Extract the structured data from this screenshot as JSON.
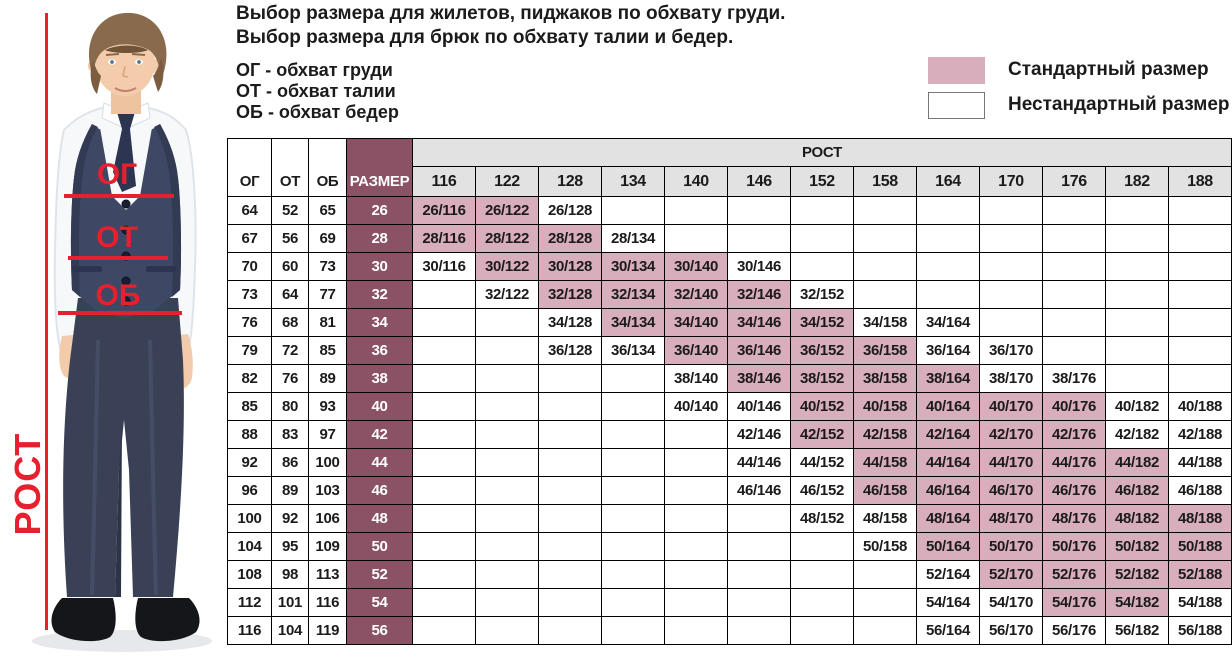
{
  "header": {
    "title_line1": "Выбор размера для жилетов, пиджаков по обхвату груди.",
    "title_line2": "Выбор размера для брюк по обхвату талии и бедер.",
    "definitions": [
      "ОГ - обхват груди",
      "ОТ - обхват талии",
      "ОБ - обхват бедер"
    ]
  },
  "legend": {
    "standard_label": "Стандартный размер",
    "nonstandard_label": "Нестандартный размер",
    "standard_color": "#d9aebc",
    "nonstandard_color": "#ffffff"
  },
  "figure": {
    "og_label": "ОГ",
    "ot_label": "ОТ",
    "ob_label": "ОБ",
    "rost_label": "РОСТ",
    "annotation_color": "#e6202e"
  },
  "chart_data": {
    "type": "table",
    "fixed_columns": [
      "ОГ",
      "ОТ",
      "ОБ",
      "РАЗМЕР"
    ],
    "height_group_label": "РОСТ",
    "heights": [
      "116",
      "122",
      "128",
      "134",
      "140",
      "146",
      "152",
      "158",
      "164",
      "170",
      "176",
      "182",
      "188"
    ],
    "colors": {
      "standard_cell": "#d9aebc",
      "size_column": "#8b5164",
      "header_bg": "#e2e2e2"
    },
    "rows": [
      {
        "og": "64",
        "ot": "52",
        "ob": "65",
        "size": "26",
        "cells": [
          {
            "h": "116",
            "label": "26/116",
            "standard": true
          },
          {
            "h": "122",
            "label": "26/122",
            "standard": true
          },
          {
            "h": "128",
            "label": "26/128",
            "standard": false
          }
        ]
      },
      {
        "og": "67",
        "ot": "56",
        "ob": "69",
        "size": "28",
        "cells": [
          {
            "h": "116",
            "label": "28/116",
            "standard": true
          },
          {
            "h": "122",
            "label": "28/122",
            "standard": true
          },
          {
            "h": "128",
            "label": "28/128",
            "standard": true
          },
          {
            "h": "134",
            "label": "28/134",
            "standard": false
          }
        ]
      },
      {
        "og": "70",
        "ot": "60",
        "ob": "73",
        "size": "30",
        "cells": [
          {
            "h": "116",
            "label": "30/116",
            "standard": false
          },
          {
            "h": "122",
            "label": "30/122",
            "standard": true
          },
          {
            "h": "128",
            "label": "30/128",
            "standard": true
          },
          {
            "h": "134",
            "label": "30/134",
            "standard": true
          },
          {
            "h": "140",
            "label": "30/140",
            "standard": true
          },
          {
            "h": "146",
            "label": "30/146",
            "standard": false
          }
        ]
      },
      {
        "og": "73",
        "ot": "64",
        "ob": "77",
        "size": "32",
        "cells": [
          {
            "h": "122",
            "label": "32/122",
            "standard": false
          },
          {
            "h": "128",
            "label": "32/128",
            "standard": true
          },
          {
            "h": "134",
            "label": "32/134",
            "standard": true
          },
          {
            "h": "140",
            "label": "32/140",
            "standard": true
          },
          {
            "h": "146",
            "label": "32/146",
            "standard": true
          },
          {
            "h": "152",
            "label": "32/152",
            "standard": false
          }
        ]
      },
      {
        "og": "76",
        "ot": "68",
        "ob": "81",
        "size": "34",
        "cells": [
          {
            "h": "128",
            "label": "34/128",
            "standard": false
          },
          {
            "h": "134",
            "label": "34/134",
            "standard": true
          },
          {
            "h": "140",
            "label": "34/140",
            "standard": true
          },
          {
            "h": "146",
            "label": "34/146",
            "standard": true
          },
          {
            "h": "152",
            "label": "34/152",
            "standard": true
          },
          {
            "h": "158",
            "label": "34/158",
            "standard": false
          },
          {
            "h": "164",
            "label": "34/164",
            "standard": false
          }
        ]
      },
      {
        "og": "79",
        "ot": "72",
        "ob": "85",
        "size": "36",
        "cells": [
          {
            "h": "128",
            "label": "36/128",
            "standard": false
          },
          {
            "h": "134",
            "label": "36/134",
            "standard": false
          },
          {
            "h": "140",
            "label": "36/140",
            "standard": true
          },
          {
            "h": "146",
            "label": "36/146",
            "standard": true
          },
          {
            "h": "152",
            "label": "36/152",
            "standard": true
          },
          {
            "h": "158",
            "label": "36/158",
            "standard": true
          },
          {
            "h": "164",
            "label": "36/164",
            "standard": false
          },
          {
            "h": "170",
            "label": "36/170",
            "standard": false
          }
        ]
      },
      {
        "og": "82",
        "ot": "76",
        "ob": "89",
        "size": "38",
        "cells": [
          {
            "h": "140",
            "label": "38/140",
            "standard": false
          },
          {
            "h": "146",
            "label": "38/146",
            "standard": true
          },
          {
            "h": "152",
            "label": "38/152",
            "standard": true
          },
          {
            "h": "158",
            "label": "38/158",
            "standard": true
          },
          {
            "h": "164",
            "label": "38/164",
            "standard": true
          },
          {
            "h": "170",
            "label": "38/170",
            "standard": false
          },
          {
            "h": "176",
            "label": "38/176",
            "standard": false
          }
        ]
      },
      {
        "og": "85",
        "ot": "80",
        "ob": "93",
        "size": "40",
        "cells": [
          {
            "h": "140",
            "label": "40/140",
            "standard": false
          },
          {
            "h": "146",
            "label": "40/146",
            "standard": false
          },
          {
            "h": "152",
            "label": "40/152",
            "standard": true
          },
          {
            "h": "158",
            "label": "40/158",
            "standard": true
          },
          {
            "h": "164",
            "label": "40/164",
            "standard": true
          },
          {
            "h": "170",
            "label": "40/170",
            "standard": true
          },
          {
            "h": "176",
            "label": "40/176",
            "standard": true
          },
          {
            "h": "182",
            "label": "40/182",
            "standard": false
          },
          {
            "h": "188",
            "label": "40/188",
            "standard": false
          }
        ]
      },
      {
        "og": "88",
        "ot": "83",
        "ob": "97",
        "size": "42",
        "cells": [
          {
            "h": "146",
            "label": "42/146",
            "standard": false
          },
          {
            "h": "152",
            "label": "42/152",
            "standard": true
          },
          {
            "h": "158",
            "label": "42/158",
            "standard": true
          },
          {
            "h": "164",
            "label": "42/164",
            "standard": true
          },
          {
            "h": "170",
            "label": "42/170",
            "standard": true
          },
          {
            "h": "176",
            "label": "42/176",
            "standard": true
          },
          {
            "h": "182",
            "label": "42/182",
            "standard": false
          },
          {
            "h": "188",
            "label": "42/188",
            "standard": false
          }
        ]
      },
      {
        "og": "92",
        "ot": "86",
        "ob": "100",
        "size": "44",
        "cells": [
          {
            "h": "146",
            "label": "44/146",
            "standard": false
          },
          {
            "h": "152",
            "label": "44/152",
            "standard": false
          },
          {
            "h": "158",
            "label": "44/158",
            "standard": true
          },
          {
            "h": "164",
            "label": "44/164",
            "standard": true
          },
          {
            "h": "170",
            "label": "44/170",
            "standard": true
          },
          {
            "h": "176",
            "label": "44/176",
            "standard": true
          },
          {
            "h": "182",
            "label": "44/182",
            "standard": true
          },
          {
            "h": "188",
            "label": "44/188",
            "standard": false
          }
        ]
      },
      {
        "og": "96",
        "ot": "89",
        "ob": "103",
        "size": "46",
        "cells": [
          {
            "h": "146",
            "label": "46/146",
            "standard": false
          },
          {
            "h": "152",
            "label": "46/152",
            "standard": false
          },
          {
            "h": "158",
            "label": "46/158",
            "standard": true
          },
          {
            "h": "164",
            "label": "46/164",
            "standard": true
          },
          {
            "h": "170",
            "label": "46/170",
            "standard": true
          },
          {
            "h": "176",
            "label": "46/176",
            "standard": true
          },
          {
            "h": "182",
            "label": "46/182",
            "standard": true
          },
          {
            "h": "188",
            "label": "46/188",
            "standard": false
          }
        ]
      },
      {
        "og": "100",
        "ot": "92",
        "ob": "106",
        "size": "48",
        "cells": [
          {
            "h": "152",
            "label": "48/152",
            "standard": false
          },
          {
            "h": "158",
            "label": "48/158",
            "standard": false
          },
          {
            "h": "164",
            "label": "48/164",
            "standard": true
          },
          {
            "h": "170",
            "label": "48/170",
            "standard": true
          },
          {
            "h": "176",
            "label": "48/176",
            "standard": true
          },
          {
            "h": "182",
            "label": "48/182",
            "standard": true
          },
          {
            "h": "188",
            "label": "48/188",
            "standard": true
          }
        ]
      },
      {
        "og": "104",
        "ot": "95",
        "ob": "109",
        "size": "50",
        "cells": [
          {
            "h": "158",
            "label": "50/158",
            "standard": false
          },
          {
            "h": "164",
            "label": "50/164",
            "standard": true
          },
          {
            "h": "170",
            "label": "50/170",
            "standard": true
          },
          {
            "h": "176",
            "label": "50/176",
            "standard": true
          },
          {
            "h": "182",
            "label": "50/182",
            "standard": true
          },
          {
            "h": "188",
            "label": "50/188",
            "standard": true
          }
        ]
      },
      {
        "og": "108",
        "ot": "98",
        "ob": "113",
        "size": "52",
        "cells": [
          {
            "h": "164",
            "label": "52/164",
            "standard": false
          },
          {
            "h": "170",
            "label": "52/170",
            "standard": true
          },
          {
            "h": "176",
            "label": "52/176",
            "standard": true
          },
          {
            "h": "182",
            "label": "52/182",
            "standard": true
          },
          {
            "h": "188",
            "label": "52/188",
            "standard": true
          }
        ]
      },
      {
        "og": "112",
        "ot": "101",
        "ob": "116",
        "size": "54",
        "cells": [
          {
            "h": "164",
            "label": "54/164",
            "standard": false
          },
          {
            "h": "170",
            "label": "54/170",
            "standard": false
          },
          {
            "h": "176",
            "label": "54/176",
            "standard": true
          },
          {
            "h": "182",
            "label": "54/182",
            "standard": true
          },
          {
            "h": "188",
            "label": "54/188",
            "standard": false
          }
        ]
      },
      {
        "og": "116",
        "ot": "104",
        "ob": "119",
        "size": "56",
        "cells": [
          {
            "h": "164",
            "label": "56/164",
            "standard": false
          },
          {
            "h": "170",
            "label": "56/170",
            "standard": false
          },
          {
            "h": "176",
            "label": "56/176",
            "standard": false
          },
          {
            "h": "182",
            "label": "56/182",
            "standard": false
          },
          {
            "h": "188",
            "label": "56/188",
            "standard": false
          }
        ]
      }
    ]
  }
}
